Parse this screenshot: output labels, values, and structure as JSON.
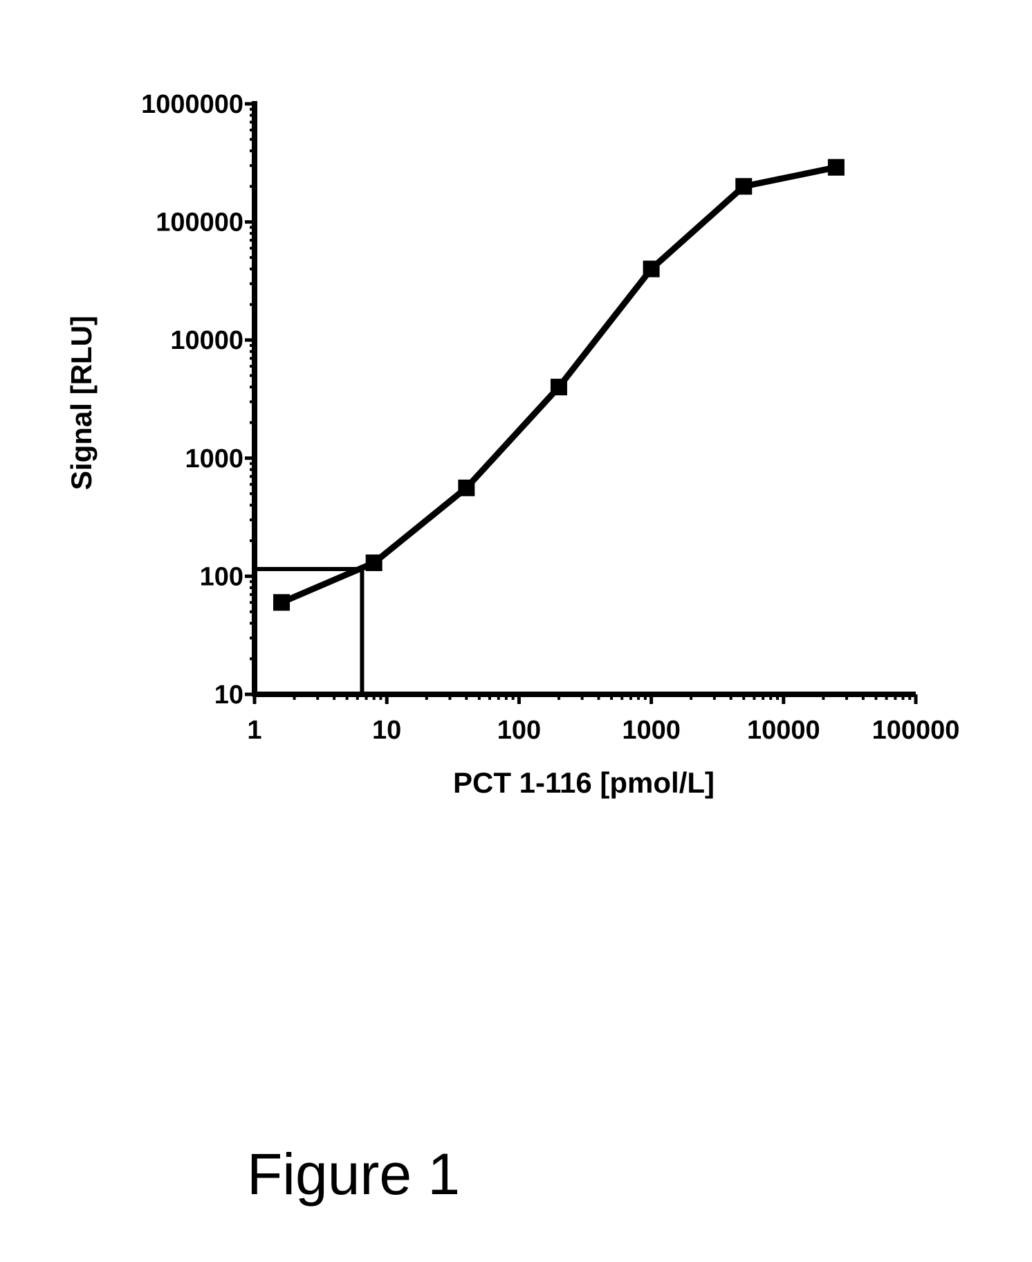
{
  "chart_data": {
    "type": "line",
    "title": "",
    "xlabel": "PCT 1-116 [pmol/L]",
    "ylabel": "Signal [RLU]",
    "x_scale": "log",
    "y_scale": "log",
    "xlim": [
      1,
      100000
    ],
    "ylim": [
      10,
      1000000
    ],
    "x_ticks": [
      1,
      10,
      100,
      1000,
      10000,
      100000
    ],
    "x_tick_labels": [
      "1",
      "10",
      "100",
      "1000",
      "10000",
      "100000"
    ],
    "y_ticks": [
      10,
      100,
      1000,
      10000,
      100000,
      1000000
    ],
    "y_tick_labels": [
      "10",
      "100",
      "1000",
      "10000",
      "100000",
      "1000000"
    ],
    "grid": false,
    "legend": "none",
    "series": [
      {
        "marker": "square",
        "color": "#000000",
        "x": [
          1.6,
          8,
          40,
          200,
          1000,
          5000,
          25000
        ],
        "y": [
          60,
          130,
          560,
          4000,
          40000,
          200000,
          290000
        ]
      }
    ],
    "reference_lines": {
      "color": "#000000",
      "x": 6.5,
      "y": 115
    }
  },
  "caption": "Figure 1"
}
